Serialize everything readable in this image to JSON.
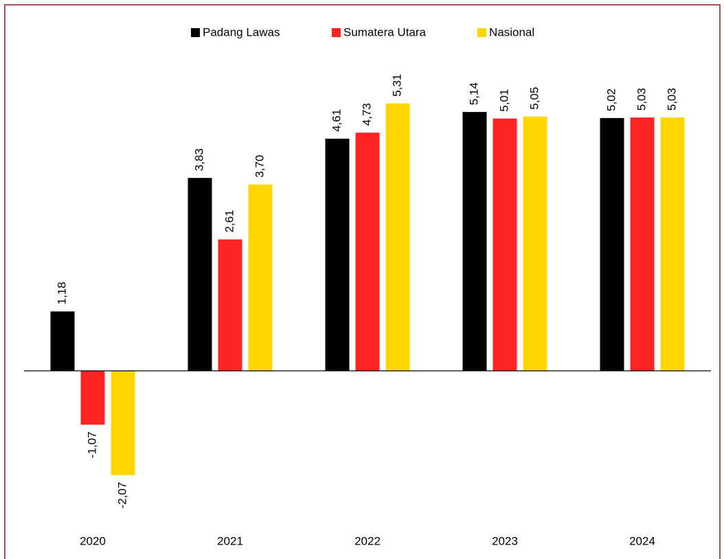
{
  "chart_data": {
    "type": "bar",
    "categories": [
      "2020",
      "2021",
      "2022",
      "2023",
      "2024"
    ],
    "series": [
      {
        "name": "Padang Lawas",
        "color": "#000000",
        "values": [
          1.18,
          3.83,
          4.61,
          5.14,
          5.02
        ],
        "value_labels": [
          "1,18",
          "3,83",
          "4,61",
          "5,14",
          "5,02"
        ]
      },
      {
        "name": "Sumatera Utara",
        "color": "#ff2424",
        "values": [
          -1.07,
          2.61,
          4.73,
          5.01,
          5.03
        ],
        "value_labels": [
          "-1,07",
          "2,61",
          "4,73",
          "5,01",
          "5,03"
        ]
      },
      {
        "name": "Nasional",
        "color": "#ffd700",
        "values": [
          -2.07,
          3.7,
          5.31,
          5.05,
          5.03
        ],
        "value_labels": [
          "-2,07",
          "3,70",
          "5,31",
          "5,05",
          "5,03"
        ]
      }
    ],
    "ylim": [
      -3,
      6
    ],
    "legend": "top"
  }
}
